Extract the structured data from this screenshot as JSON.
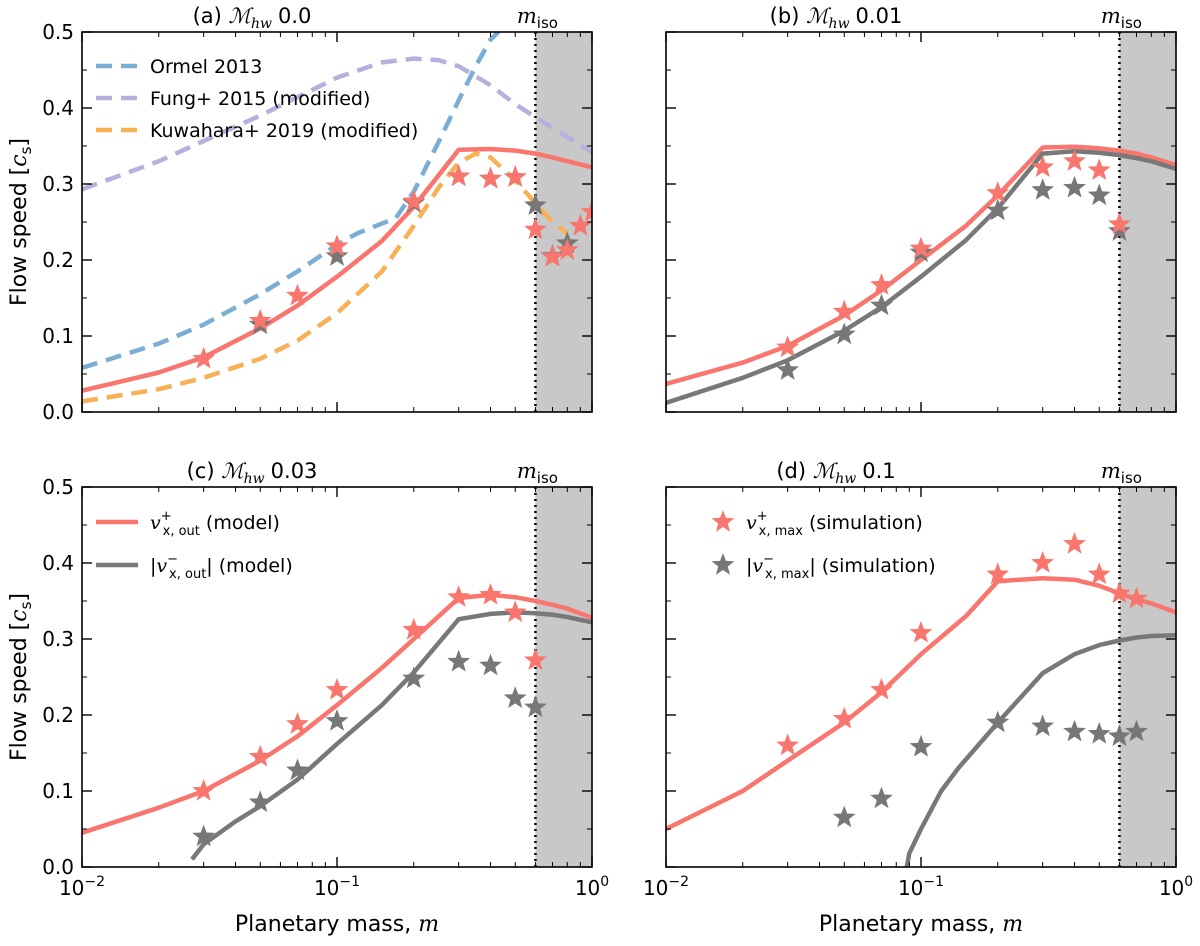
{
  "figure": {
    "ylabel_text": "Flow speed [",
    "ylabel_unit": "c",
    "ylabel_unit_sub": "s",
    "ylabel_close": "]",
    "xlabel_text": "Planetary mass, ",
    "xlabel_var": "m",
    "miso_label": "m",
    "miso_sub": "iso",
    "mach_symbol": "ℳ",
    "mach_sub": "hw",
    "x_tick_base": "10",
    "x_tick_exps": [
      "−2",
      "−1",
      "0"
    ],
    "y_tick_labels": [
      "0.0",
      "0.1",
      "0.2",
      "0.3",
      "0.4",
      "0.5"
    ]
  },
  "colors": {
    "model_pos": "#f8766d",
    "model_neg": "#787878",
    "sim_pos": "#f8766d",
    "sim_neg": "#777777",
    "ormel": "#7aaed4",
    "fung": "#b5b0dc",
    "kuwahara": "#f7b055",
    "shade": "#c8c8c8"
  },
  "legend_items": {
    "ormel": "Ormel 2013",
    "fung": "Fung+ 2015 (modified)",
    "kuwahara": "Kuwahara+ 2019 (modified)",
    "model_pos_var": "v",
    "model_pos_sub": "x, out",
    "model_pos_sup": "+",
    "model_pos_suffix": " (model)",
    "model_neg_var": "v",
    "model_neg_sub": "x, out",
    "model_neg_sup": "−",
    "model_neg_suffix": " (model)",
    "sim_pos_var": "v",
    "sim_pos_sub": "x, max",
    "sim_pos_sup": "+",
    "sim_pos_suffix": " (simulation)",
    "sim_neg_var": "v",
    "sim_neg_sub": "x, max",
    "sim_neg_sup": "−",
    "sim_neg_suffix": " (simulation)"
  },
  "chart_data": [
    {
      "type": "line",
      "panel": "a",
      "title_prefix": "(a) ",
      "mach_value": "0.0",
      "xscale": "log",
      "xlim": [
        0.01,
        1
      ],
      "ylim": [
        0,
        0.5
      ],
      "xlabel": "",
      "ylabel": "Flow speed [c_s]",
      "m_iso": 0.6,
      "series": [
        {
          "name": "model_pos",
          "style": "solid",
          "x": [
            0.01,
            0.02,
            0.03,
            0.05,
            0.07,
            0.1,
            0.15,
            0.2,
            0.3,
            0.4,
            0.5,
            0.6,
            0.7,
            0.8,
            1.0
          ],
          "y": [
            0.028,
            0.052,
            0.072,
            0.11,
            0.14,
            0.178,
            0.225,
            0.27,
            0.345,
            0.346,
            0.344,
            0.34,
            0.335,
            0.33,
            0.322
          ]
        },
        {
          "name": "ormel",
          "style": "dashed",
          "x": [
            0.01,
            0.02,
            0.03,
            0.05,
            0.07,
            0.1,
            0.12,
            0.15,
            0.17,
            0.2,
            0.25,
            0.3,
            0.35,
            0.4,
            0.43
          ],
          "y": [
            0.058,
            0.09,
            0.115,
            0.155,
            0.185,
            0.22,
            0.235,
            0.248,
            0.255,
            0.29,
            0.355,
            0.41,
            0.455,
            0.49,
            0.5
          ]
        },
        {
          "name": "fung",
          "style": "dashed",
          "x": [
            0.01,
            0.02,
            0.05,
            0.1,
            0.15,
            0.2,
            0.25,
            0.3,
            0.4,
            0.5,
            0.6,
            0.7,
            0.8,
            1.0
          ],
          "y": [
            0.293,
            0.33,
            0.39,
            0.44,
            0.46,
            0.465,
            0.463,
            0.455,
            0.43,
            0.405,
            0.388,
            0.374,
            0.362,
            0.342
          ]
        },
        {
          "name": "kuwahara",
          "style": "dashed",
          "x": [
            0.01,
            0.02,
            0.03,
            0.05,
            0.07,
            0.1,
            0.15,
            0.2,
            0.25,
            0.3,
            0.35,
            0.4,
            0.5,
            0.6,
            0.7,
            0.8
          ],
          "y": [
            0.014,
            0.03,
            0.045,
            0.07,
            0.094,
            0.13,
            0.185,
            0.245,
            0.295,
            0.328,
            0.34,
            0.335,
            0.305,
            0.275,
            0.25,
            0.235
          ]
        }
      ],
      "stars": [
        {
          "name": "sim_pos",
          "x": [
            0.03,
            0.05,
            0.07,
            0.1,
            0.2,
            0.3,
            0.4,
            0.5,
            0.6,
            0.7,
            0.8,
            0.9,
            1.0
          ],
          "y": [
            0.07,
            0.12,
            0.153,
            0.218,
            0.277,
            0.31,
            0.307,
            0.309,
            0.24,
            0.204,
            0.213,
            0.245,
            0.263
          ]
        },
        {
          "name": "sim_neg",
          "x": [
            0.05,
            0.1,
            0.2,
            0.3,
            0.4,
            0.5,
            0.6,
            0.7,
            0.8
          ],
          "y": [
            0.115,
            0.205,
            0.275,
            0.31,
            0.307,
            0.309,
            0.272,
            0.205,
            0.222
          ]
        }
      ]
    },
    {
      "type": "line",
      "panel": "b",
      "title_prefix": "(b) ",
      "mach_value": "0.01",
      "xscale": "log",
      "xlim": [
        0.01,
        1
      ],
      "ylim": [
        0,
        0.5
      ],
      "xlabel": "",
      "ylabel": "",
      "m_iso": 0.6,
      "series": [
        {
          "name": "model_pos",
          "style": "solid",
          "x": [
            0.01,
            0.02,
            0.03,
            0.05,
            0.07,
            0.1,
            0.15,
            0.2,
            0.3,
            0.4,
            0.5,
            0.6,
            0.7,
            0.8,
            1.0
          ],
          "y": [
            0.037,
            0.065,
            0.087,
            0.127,
            0.16,
            0.2,
            0.245,
            0.285,
            0.348,
            0.349,
            0.347,
            0.344,
            0.34,
            0.335,
            0.325
          ]
        },
        {
          "name": "model_neg",
          "style": "solid",
          "x": [
            0.01,
            0.02,
            0.03,
            0.05,
            0.07,
            0.1,
            0.15,
            0.2,
            0.3,
            0.4,
            0.5,
            0.6,
            0.7,
            0.8,
            1.0
          ],
          "y": [
            0.012,
            0.045,
            0.068,
            0.107,
            0.138,
            0.178,
            0.226,
            0.268,
            0.34,
            0.343,
            0.341,
            0.338,
            0.334,
            0.33,
            0.32
          ]
        }
      ],
      "stars": [
        {
          "name": "sim_pos",
          "x": [
            0.03,
            0.05,
            0.07,
            0.1,
            0.2,
            0.3,
            0.4,
            0.5,
            0.6
          ],
          "y": [
            0.085,
            0.132,
            0.167,
            0.215,
            0.288,
            0.322,
            0.33,
            0.318,
            0.247
          ]
        },
        {
          "name": "sim_neg",
          "x": [
            0.03,
            0.05,
            0.07,
            0.1,
            0.2,
            0.3,
            0.4,
            0.5,
            0.6
          ],
          "y": [
            0.055,
            0.102,
            0.14,
            0.21,
            0.265,
            0.292,
            0.295,
            0.285,
            0.238
          ]
        }
      ]
    },
    {
      "type": "line",
      "panel": "c",
      "title_prefix": "(c) ",
      "mach_value": "0.03",
      "xscale": "log",
      "xlim": [
        0.01,
        1
      ],
      "ylim": [
        0,
        0.5
      ],
      "xlabel": "Planetary mass, m",
      "ylabel": "Flow speed [c_s]",
      "m_iso": 0.6,
      "series": [
        {
          "name": "model_pos",
          "style": "solid",
          "x": [
            0.01,
            0.02,
            0.03,
            0.05,
            0.07,
            0.1,
            0.15,
            0.2,
            0.3,
            0.4,
            0.5,
            0.6,
            0.7,
            0.8,
            1.0
          ],
          "y": [
            0.045,
            0.078,
            0.1,
            0.14,
            0.172,
            0.213,
            0.262,
            0.3,
            0.354,
            0.358,
            0.355,
            0.35,
            0.345,
            0.34,
            0.328
          ]
        },
        {
          "name": "model_neg",
          "style": "solid",
          "x": [
            0.027,
            0.03,
            0.04,
            0.05,
            0.07,
            0.1,
            0.15,
            0.2,
            0.3,
            0.4,
            0.5,
            0.6,
            0.7,
            0.8,
            1.0
          ],
          "y": [
            0.01,
            0.03,
            0.06,
            0.08,
            0.115,
            0.162,
            0.213,
            0.256,
            0.326,
            0.333,
            0.335,
            0.334,
            0.332,
            0.329,
            0.322
          ]
        }
      ],
      "stars": [
        {
          "name": "sim_pos",
          "x": [
            0.03,
            0.05,
            0.07,
            0.1,
            0.2,
            0.3,
            0.4,
            0.5,
            0.6
          ],
          "y": [
            0.1,
            0.145,
            0.188,
            0.233,
            0.312,
            0.355,
            0.358,
            0.335,
            0.272
          ]
        },
        {
          "name": "sim_neg",
          "x": [
            0.03,
            0.05,
            0.07,
            0.1,
            0.2,
            0.3,
            0.4,
            0.5,
            0.6
          ],
          "y": [
            0.04,
            0.085,
            0.127,
            0.192,
            0.248,
            0.27,
            0.265,
            0.222,
            0.21
          ]
        }
      ]
    },
    {
      "type": "line",
      "panel": "d",
      "title_prefix": "(d) ",
      "mach_value": "0.1",
      "xscale": "log",
      "xlim": [
        0.01,
        1
      ],
      "ylim": [
        0,
        0.5
      ],
      "xlabel": "Planetary mass, m",
      "ylabel": "",
      "m_iso": 0.6,
      "series": [
        {
          "name": "model_pos",
          "style": "solid",
          "x": [
            0.01,
            0.02,
            0.03,
            0.05,
            0.07,
            0.1,
            0.15,
            0.2,
            0.3,
            0.4,
            0.5,
            0.6,
            0.7,
            0.8,
            1.0
          ],
          "y": [
            0.05,
            0.1,
            0.14,
            0.19,
            0.23,
            0.28,
            0.33,
            0.376,
            0.38,
            0.378,
            0.37,
            0.36,
            0.352,
            0.347,
            0.335
          ]
        },
        {
          "name": "model_neg",
          "style": "solid",
          "x": [
            0.088,
            0.09,
            0.1,
            0.12,
            0.14,
            0.2,
            0.3,
            0.4,
            0.5,
            0.6,
            0.7,
            0.8,
            1.0
          ],
          "y": [
            0.0,
            0.018,
            0.05,
            0.1,
            0.13,
            0.19,
            0.255,
            0.28,
            0.292,
            0.298,
            0.302,
            0.304,
            0.305
          ]
        }
      ],
      "stars": [
        {
          "name": "sim_pos",
          "x": [
            0.03,
            0.05,
            0.07,
            0.1,
            0.2,
            0.3,
            0.4,
            0.5,
            0.6,
            0.7
          ],
          "y": [
            0.16,
            0.195,
            0.233,
            0.308,
            0.385,
            0.4,
            0.425,
            0.385,
            0.36,
            0.353
          ]
        },
        {
          "name": "sim_neg",
          "x": [
            0.05,
            0.07,
            0.1,
            0.2,
            0.3,
            0.4,
            0.5,
            0.6,
            0.7
          ],
          "y": [
            0.065,
            0.09,
            0.158,
            0.19,
            0.185,
            0.178,
            0.175,
            0.172,
            0.178
          ]
        }
      ]
    }
  ]
}
